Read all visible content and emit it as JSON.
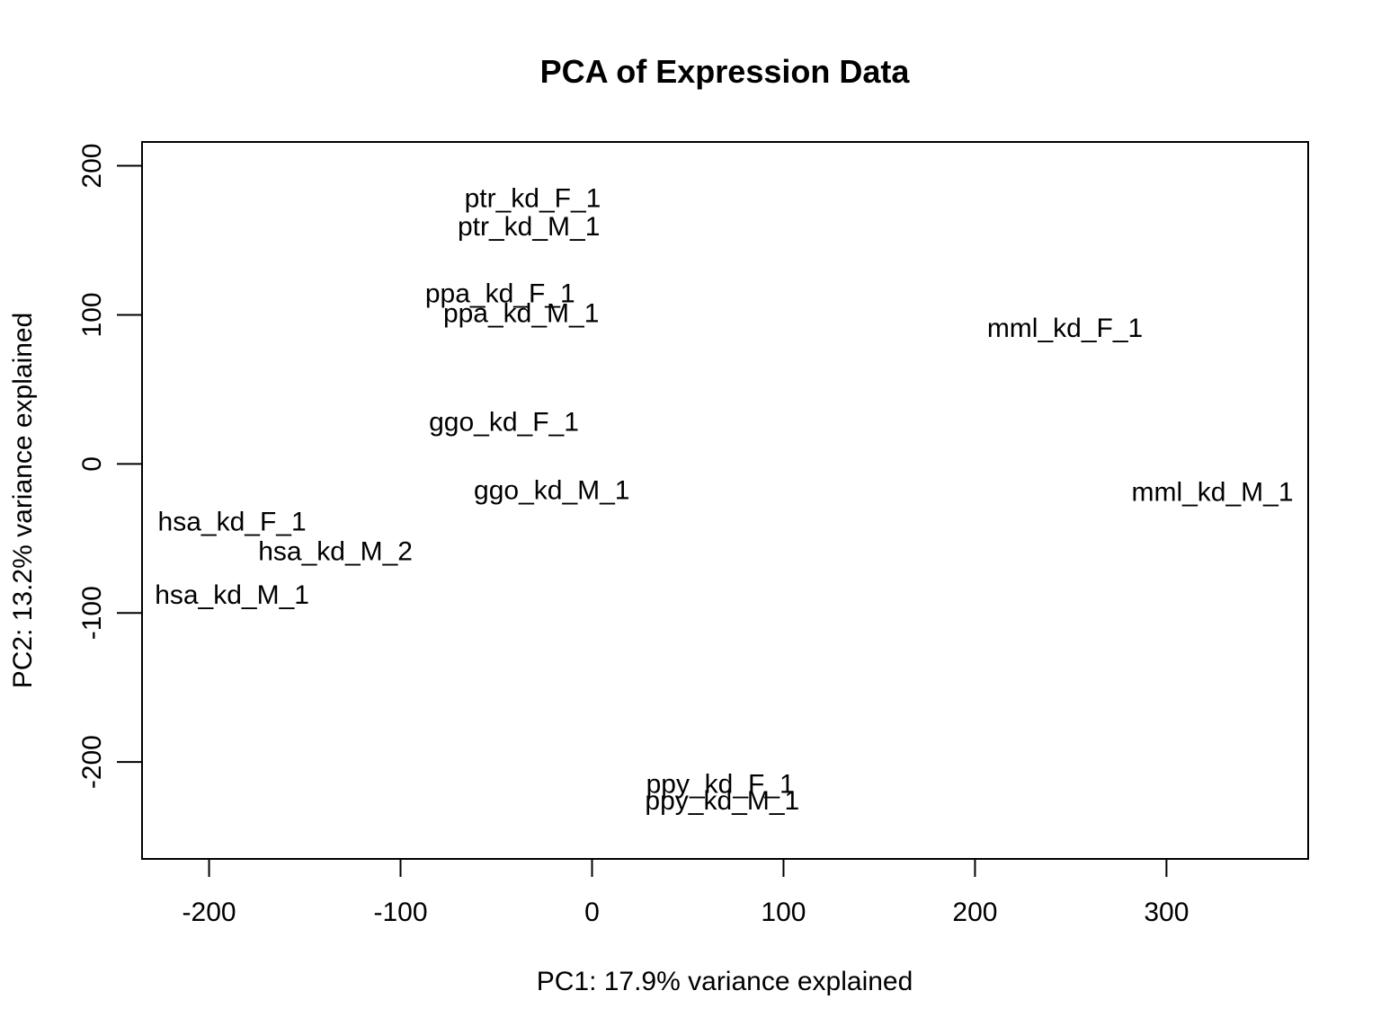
{
  "chart_data": {
    "type": "scatter",
    "title": "PCA of Expression Data",
    "xlabel": "PC1: 17.9% variance explained",
    "ylabel": "PC2: 13.2% variance explained",
    "xlim": [
      -235,
      374
    ],
    "ylim": [
      -265,
      216
    ],
    "x_ticks": [
      -200,
      -100,
      0,
      100,
      200,
      300
    ],
    "y_ticks": [
      200,
      100,
      0,
      -100,
      -200
    ],
    "grid": false,
    "points_rendered_as": "text labels",
    "points": [
      {
        "label": "ptr_kd_F_1",
        "x": -31,
        "y": 178
      },
      {
        "label": "ptr_kd_M_1",
        "x": -33,
        "y": 159
      },
      {
        "label": "ppa_kd_F_1",
        "x": -48,
        "y": 114
      },
      {
        "label": "ppa_kd_M_1",
        "x": -37,
        "y": 101
      },
      {
        "label": "mml_kd_F_1",
        "x": 247,
        "y": 91
      },
      {
        "label": "ggo_kd_F_1",
        "x": -46,
        "y": 28
      },
      {
        "label": "ggo_kd_M_1",
        "x": -21,
        "y": -18
      },
      {
        "label": "mml_kd_M_1",
        "x": 324,
        "y": -19
      },
      {
        "label": "hsa_kd_F_1",
        "x": -188,
        "y": -39
      },
      {
        "label": "hsa_kd_M_2",
        "x": -134,
        "y": -59
      },
      {
        "label": "hsa_kd_M_1",
        "x": -188,
        "y": -88
      },
      {
        "label": "ppy_kd_F_1",
        "x": 67,
        "y": -215
      },
      {
        "label": "ppy_kd_M_1",
        "x": 68,
        "y": -226
      }
    ]
  }
}
